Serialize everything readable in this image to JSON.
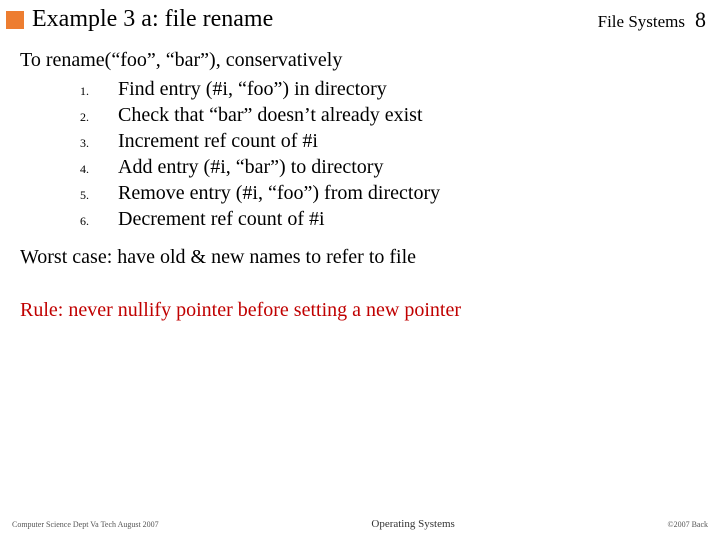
{
  "header": {
    "title": "Example 3 a: file rename",
    "section": "File Systems",
    "page": "8",
    "bullet_color": "#ed7d31"
  },
  "intro": "To rename(“foo”, “bar”), conservatively",
  "steps": [
    {
      "n": "1.",
      "text": "Find entry (#i, “foo”) in directory"
    },
    {
      "n": "2.",
      "text": "Check that “bar” doesn’t already exist"
    },
    {
      "n": "3.",
      "text": "Increment ref count of #i"
    },
    {
      "n": "4.",
      "text": "Add entry (#i, “bar”) to directory"
    },
    {
      "n": "5.",
      "text": "Remove entry (#i, “foo”) from directory"
    },
    {
      "n": "6.",
      "text": "Decrement ref count of #i"
    }
  ],
  "worst": "Worst case: have old & new names to refer to file",
  "rule": "Rule: never nullify pointer before setting a new pointer",
  "rule_color": "#c00000",
  "footer": {
    "left": "Computer Science Dept Va Tech August 2007",
    "center": "Operating Systems",
    "right": "©2007 Back"
  }
}
